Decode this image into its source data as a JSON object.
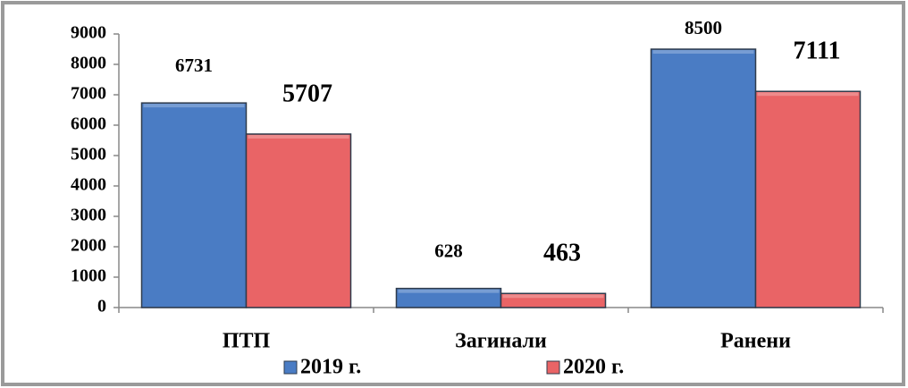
{
  "chart_data": {
    "type": "bar",
    "categories": [
      "ПТП",
      "Загинали",
      "Ранени"
    ],
    "series": [
      {
        "name": "2019 г.",
        "color": "#4a7cc4",
        "values": [
          6731,
          628,
          8500
        ]
      },
      {
        "name": "2020 г.",
        "color": "#e96466",
        "values": [
          5707,
          463,
          7111
        ]
      }
    ],
    "ylim": [
      0,
      9000
    ],
    "yticks": [
      0,
      1000,
      2000,
      3000,
      4000,
      5000,
      6000,
      7000,
      8000,
      9000
    ],
    "legend": "bottom"
  }
}
